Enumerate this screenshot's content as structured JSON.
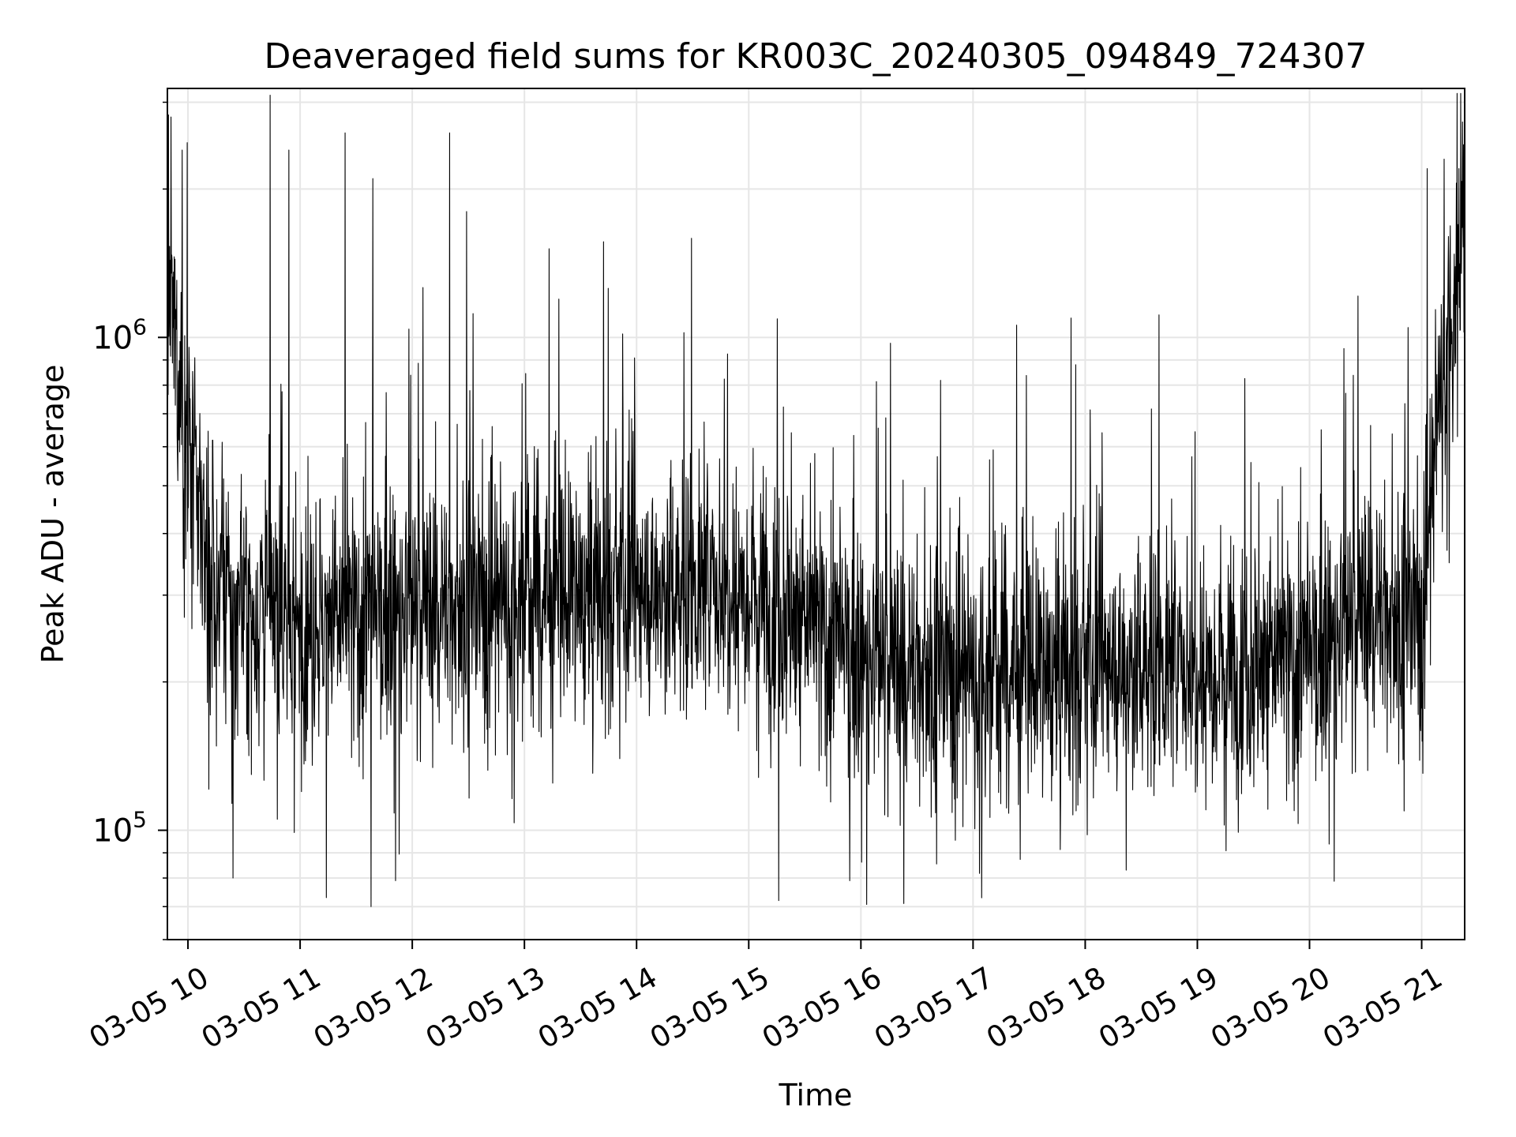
{
  "chart_data": {
    "type": "line",
    "title": "Deaveraged field sums for KR003C_20240305_094849_724307",
    "xlabel": "Time",
    "ylabel": "Peak ADU - average",
    "yscale": "log",
    "grid": true,
    "legend": "none",
    "line_color": "#000000",
    "grid_color": "#e6e6e6",
    "xlim": [
      "2024-03-05 09:49",
      "2024-03-05 21:23"
    ],
    "ylim": [
      60000,
      3200000
    ],
    "x_ticks": [
      {
        "label": "03-05 10",
        "value": "2024-03-05 10:00"
      },
      {
        "label": "03-05 11",
        "value": "2024-03-05 11:00"
      },
      {
        "label": "03-05 12",
        "value": "2024-03-05 12:00"
      },
      {
        "label": "03-05 13",
        "value": "2024-03-05 13:00"
      },
      {
        "label": "03-05 14",
        "value": "2024-03-05 14:00"
      },
      {
        "label": "03-05 15",
        "value": "2024-03-05 15:00"
      },
      {
        "label": "03-05 16",
        "value": "2024-03-05 16:00"
      },
      {
        "label": "03-05 17",
        "value": "2024-03-05 17:00"
      },
      {
        "label": "03-05 18",
        "value": "2024-03-05 18:00"
      },
      {
        "label": "03-05 19",
        "value": "2024-03-05 19:00"
      },
      {
        "label": "03-05 20",
        "value": "2024-03-05 20:00"
      },
      {
        "label": "03-05 21",
        "value": "2024-03-05 21:00"
      }
    ],
    "y_ticks": [
      {
        "base": "10",
        "exp": "5",
        "value": 100000
      },
      {
        "base": "10",
        "exp": "6",
        "value": 1000000
      }
    ],
    "envelope": {
      "note_series": "Peak ADU - average over time (dense noisy trace); typical level by time",
      "x": [
        "2024-03-05 09:50",
        "2024-03-05 10:00",
        "2024-03-05 10:15",
        "2024-03-05 10:30",
        "2024-03-05 11:00",
        "2024-03-05 12:00",
        "2024-03-05 13:00",
        "2024-03-05 14:00",
        "2024-03-05 15:00",
        "2024-03-05 16:00",
        "2024-03-05 17:00",
        "2024-03-05 18:00",
        "2024-03-05 19:00",
        "2024-03-05 20:00",
        "2024-03-05 20:30",
        "2024-03-05 21:00",
        "2024-03-05 21:10",
        "2024-03-05 21:23"
      ],
      "median": [
        1200000,
        600000,
        300000,
        280000,
        260000,
        280000,
        300000,
        300000,
        320000,
        220000,
        210000,
        210000,
        220000,
        220000,
        280000,
        270000,
        800000,
        1500000
      ]
    },
    "peaks": [
      {
        "x": "2024-03-05 09:51",
        "y": 2800000
      },
      {
        "x": "2024-03-05 09:57",
        "y": 2400000
      },
      {
        "x": "2024-03-05 10:44",
        "y": 3100000
      },
      {
        "x": "2024-03-05 10:54",
        "y": 2400000
      },
      {
        "x": "2024-03-05 11:24",
        "y": 2600000
      },
      {
        "x": "2024-03-05 11:39",
        "y": 2100000
      },
      {
        "x": "2024-03-05 12:20",
        "y": 2600000
      },
      {
        "x": "2024-03-05 12:29",
        "y": 1800000
      },
      {
        "x": "2024-03-05 15:16",
        "y": 1200000
      },
      {
        "x": "2024-03-05 21:03",
        "y": 2200000
      },
      {
        "x": "2024-03-05 21:12",
        "y": 2300000
      },
      {
        "x": "2024-03-05 21:20",
        "y": 2200000
      }
    ],
    "troughs": [
      {
        "x": "2024-03-05 10:24",
        "y": 80000
      },
      {
        "x": "2024-03-05 11:14",
        "y": 73000
      },
      {
        "x": "2024-03-05 11:38",
        "y": 70000
      },
      {
        "x": "2024-03-05 11:51",
        "y": 79000
      },
      {
        "x": "2024-03-05 15:16",
        "y": 72000
      },
      {
        "x": "2024-03-05 15:54",
        "y": 79000
      },
      {
        "x": "2024-03-05 16:23",
        "y": 71000
      },
      {
        "x": "2024-03-05 18:22",
        "y": 83000
      }
    ]
  }
}
